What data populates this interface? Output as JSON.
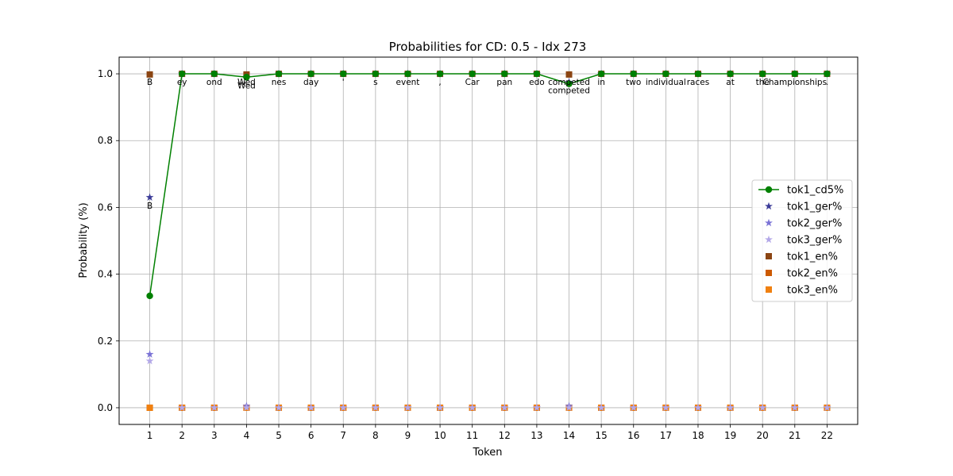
{
  "chart_data": {
    "type": "line",
    "title": "Probabilities for CD: 0.5 - Idx 273",
    "xlabel": "Token",
    "ylabel": "Probability (%)",
    "x": [
      1,
      2,
      3,
      4,
      5,
      6,
      7,
      8,
      9,
      10,
      11,
      12,
      13,
      14,
      15,
      16,
      17,
      18,
      19,
      20,
      21,
      22
    ],
    "xlim": [
      0.05,
      22.95
    ],
    "ylim": [
      -0.05,
      1.05
    ],
    "yticks": [
      0.0,
      0.2,
      0.4,
      0.6,
      0.8,
      1.0
    ],
    "yticklabels": [
      "0.0",
      "0.2",
      "0.4",
      "0.6",
      "0.8",
      "1.0"
    ],
    "grid": true,
    "legend_position": "center-right",
    "series": [
      {
        "name": "tok1_cd5%",
        "kind": "line",
        "marker": "circle",
        "color": "#008000",
        "values": [
          0.335,
          1.0,
          1.0,
          0.99,
          1.0,
          1.0,
          1.0,
          1.0,
          1.0,
          1.0,
          1.0,
          1.0,
          1.0,
          0.97,
          1.0,
          1.0,
          1.0,
          1.0,
          1.0,
          1.0,
          1.0,
          1.0
        ]
      },
      {
        "name": "tok1_ger%",
        "kind": "scatter",
        "marker": "star",
        "color": "#3b3b98",
        "values": [
          0.63,
          1.0,
          1.0,
          0.99,
          1.0,
          1.0,
          1.0,
          1.0,
          1.0,
          1.0,
          1.0,
          1.0,
          1.0,
          0.975,
          1.0,
          1.0,
          1.0,
          1.0,
          1.0,
          1.0,
          1.0,
          1.0
        ]
      },
      {
        "name": "tok2_ger%",
        "kind": "scatter",
        "marker": "star",
        "color": "#7b73d6",
        "values": [
          0.16,
          0.0,
          0.0,
          0.005,
          0.0,
          0.0,
          0.0,
          0.0,
          0.0,
          0.0,
          0.0,
          0.0,
          0.0,
          0.005,
          0.0,
          0.0,
          0.0,
          0.0,
          0.0,
          0.0,
          0.0,
          0.0
        ]
      },
      {
        "name": "tok3_ger%",
        "kind": "scatter",
        "marker": "star",
        "color": "#b3a8e8",
        "values": [
          0.14,
          0.0,
          0.0,
          0.0,
          0.0,
          0.0,
          0.0,
          0.0,
          0.0,
          0.0,
          0.0,
          0.0,
          0.0,
          0.0,
          0.0,
          0.0,
          0.0,
          0.0,
          0.0,
          0.0,
          0.0,
          0.0
        ]
      },
      {
        "name": "tok1_en%",
        "kind": "scatter",
        "marker": "square",
        "color": "#8b4513",
        "values": [
          0.998,
          1.0,
          1.0,
          0.998,
          1.0,
          1.0,
          1.0,
          1.0,
          1.0,
          1.0,
          1.0,
          1.0,
          1.0,
          0.998,
          1.0,
          1.0,
          1.0,
          1.0,
          1.0,
          1.0,
          1.0,
          1.0
        ]
      },
      {
        "name": "tok2_en%",
        "kind": "scatter",
        "marker": "square",
        "color": "#cc5a00",
        "values": [
          0.0,
          0.0,
          0.0,
          0.0,
          0.0,
          0.0,
          0.0,
          0.0,
          0.0,
          0.0,
          0.0,
          0.0,
          0.0,
          0.0,
          0.0,
          0.0,
          0.0,
          0.0,
          0.0,
          0.0,
          0.0,
          0.0
        ]
      },
      {
        "name": "tok3_en%",
        "kind": "scatter",
        "marker": "square",
        "color": "#f08010",
        "values": [
          0.0,
          0.0,
          0.0,
          0.0,
          0.0,
          0.0,
          0.0,
          0.0,
          0.0,
          0.0,
          0.0,
          0.0,
          0.0,
          0.0,
          0.0,
          0.0,
          0.0,
          0.0,
          0.0,
          0.0,
          0.0,
          0.0
        ]
      }
    ],
    "annotations": [
      {
        "x": 1,
        "y": 1.0,
        "text": "B"
      },
      {
        "x": 1,
        "y": 0.63,
        "text": "B"
      },
      {
        "x": 2,
        "y": 1.0,
        "text": "ey"
      },
      {
        "x": 3,
        "y": 1.0,
        "text": "ond"
      },
      {
        "x": 4,
        "y": 1.0,
        "text": "Wed"
      },
      {
        "x": 4,
        "y": 0.99,
        "text": "Wed"
      },
      {
        "x": 5,
        "y": 1.0,
        "text": "nes"
      },
      {
        "x": 6,
        "y": 1.0,
        "text": "day"
      },
      {
        "x": 7,
        "y": 1.0,
        "text": "'"
      },
      {
        "x": 8,
        "y": 1.0,
        "text": "s"
      },
      {
        "x": 9,
        "y": 1.0,
        "text": "event"
      },
      {
        "x": 10,
        "y": 1.0,
        "text": ","
      },
      {
        "x": 11,
        "y": 1.0,
        "text": "Car"
      },
      {
        "x": 12,
        "y": 1.0,
        "text": "pan"
      },
      {
        "x": 13,
        "y": 1.0,
        "text": "edo"
      },
      {
        "x": 14,
        "y": 1.0,
        "text": "competed"
      },
      {
        "x": 14,
        "y": 0.975,
        "text": "competed"
      },
      {
        "x": 15,
        "y": 1.0,
        "text": "in"
      },
      {
        "x": 16,
        "y": 1.0,
        "text": "two"
      },
      {
        "x": 17,
        "y": 1.0,
        "text": "individual"
      },
      {
        "x": 18,
        "y": 1.0,
        "text": "races"
      },
      {
        "x": 19,
        "y": 1.0,
        "text": "at"
      },
      {
        "x": 20,
        "y": 1.0,
        "text": "the"
      },
      {
        "x": 21,
        "y": 1.0,
        "text": "Championships"
      },
      {
        "x": 22,
        "y": 1.0,
        "text": "."
      }
    ]
  }
}
